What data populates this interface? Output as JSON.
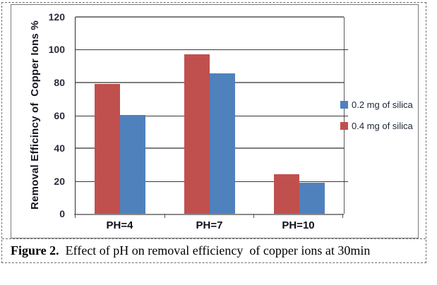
{
  "chart_data": {
    "type": "bar",
    "title": "",
    "categories": [
      "PH=4",
      "PH=7",
      "PH=10"
    ],
    "series": [
      {
        "name": "0.4 mg of silica",
        "color": "#C0504D",
        "values": [
          79,
          97,
          24
        ]
      },
      {
        "name": "0.2 mg of silica",
        "color": "#4F81BD",
        "values": [
          60,
          85.5,
          19
        ]
      }
    ],
    "legend": {
      "position": "right",
      "items": [
        {
          "label": "0.2 mg of silica",
          "color": "#4F81BD"
        },
        {
          "label": "0.4 mg of silica",
          "color": "#C0504D"
        }
      ]
    },
    "xlabel": "",
    "ylabel": "Removal Efficincy of  Copper Ions %",
    "ylim": [
      0,
      120
    ],
    "yticks": [
      0,
      20,
      40,
      60,
      80,
      100,
      120
    ],
    "grid": true
  },
  "caption": {
    "label": "Figure 2.",
    "text": "  Effect of pH on removal efficiency  of copper ions at 30min"
  }
}
